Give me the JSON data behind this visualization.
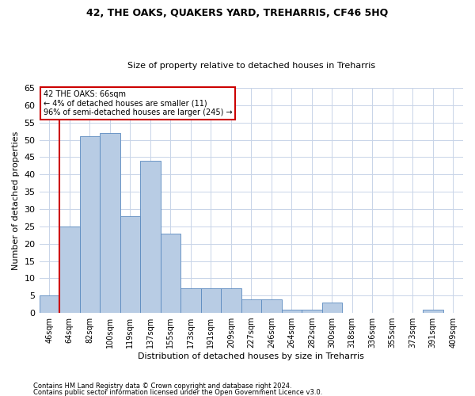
{
  "title1": "42, THE OAKS, QUAKERS YARD, TREHARRIS, CF46 5HQ",
  "title2": "Size of property relative to detached houses in Treharris",
  "xlabel": "Distribution of detached houses by size in Treharris",
  "ylabel": "Number of detached properties",
  "categories": [
    "46sqm",
    "64sqm",
    "82sqm",
    "100sqm",
    "119sqm",
    "137sqm",
    "155sqm",
    "173sqm",
    "191sqm",
    "209sqm",
    "227sqm",
    "246sqm",
    "264sqm",
    "282sqm",
    "300sqm",
    "318sqm",
    "336sqm",
    "355sqm",
    "373sqm",
    "391sqm",
    "409sqm"
  ],
  "values": [
    5,
    25,
    51,
    52,
    28,
    44,
    23,
    7,
    7,
    7,
    4,
    4,
    1,
    1,
    3,
    0,
    0,
    0,
    0,
    1,
    0
  ],
  "bar_color": "#b8cce4",
  "bar_edgecolor": "#5a8abf",
  "marker_label_line1": "42 THE OAKS: 66sqm",
  "marker_label_line2": "← 4% of detached houses are smaller (11)",
  "marker_label_line3": "96% of semi-detached houses are larger (245) →",
  "vline_color": "#cc0000",
  "vline_x": 0.5,
  "box_edgecolor": "#cc0000",
  "ylim": [
    0,
    65
  ],
  "yticks": [
    0,
    5,
    10,
    15,
    20,
    25,
    30,
    35,
    40,
    45,
    50,
    55,
    60,
    65
  ],
  "footnote1": "Contains HM Land Registry data © Crown copyright and database right 2024.",
  "footnote2": "Contains public sector information licensed under the Open Government Licence v3.0.",
  "background_color": "#ffffff",
  "grid_color": "#c8d4e8",
  "title1_fontsize": 9,
  "title2_fontsize": 8,
  "ylabel_fontsize": 8,
  "xlabel_fontsize": 8,
  "tick_fontsize": 7,
  "footnote_fontsize": 6
}
